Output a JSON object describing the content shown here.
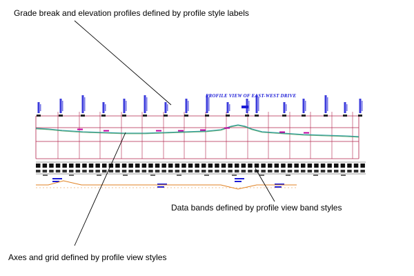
{
  "callouts": {
    "grade_break_label": "Grade break and elevation profiles defined by profile style labels",
    "data_bands_label": "Data bands defined by profile view band styles",
    "axes_grid_label": "Axes and grid defined by profile view styles"
  },
  "profile_view": {
    "title": "PROFILE VIEW OF EAST-WEST DRIVE"
  },
  "colors": {
    "label_blue": "#1a1ad6",
    "grid_red": "#b0204a",
    "profile_teal": "#2a9d9a",
    "profile_green": "#3a8f3a",
    "grade_magenta": "#c000a0",
    "band_orange": "#e08020",
    "leader_black": "#000000"
  }
}
